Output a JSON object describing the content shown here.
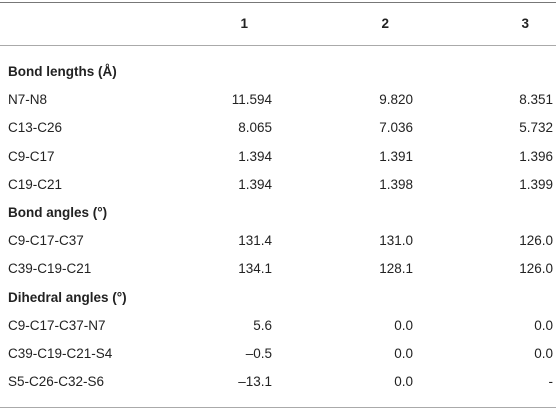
{
  "table": {
    "columns": [
      "1",
      "2",
      "3"
    ],
    "sections": [
      {
        "title": "Bond lengths (Å)",
        "rows": [
          {
            "label": "N7-N8",
            "values": [
              "11.594",
              "9.820",
              "8.351"
            ]
          },
          {
            "label": "C13-C26",
            "values": [
              "8.065",
              "7.036",
              "5.732"
            ]
          },
          {
            "label": "C9-C17",
            "values": [
              "1.394",
              "1.391",
              "1.396"
            ]
          },
          {
            "label": "C19-C21",
            "values": [
              "1.394",
              "1.398",
              "1.399"
            ]
          }
        ]
      },
      {
        "title": "Bond angles (°)",
        "rows": [
          {
            "label": "C9-C17-C37",
            "values": [
              "131.4",
              "131.0",
              "126.0"
            ]
          },
          {
            "label": "C39-C19-C21",
            "values": [
              "134.1",
              "128.1",
              "126.0"
            ]
          }
        ]
      },
      {
        "title": "Dihedral angles (°)",
        "rows": [
          {
            "label": "C9-C17-C37-N7",
            "values": [
              "5.6",
              "0.0",
              "0.0"
            ]
          },
          {
            "label": "C39-C19-C21-S4",
            "values": [
              "–0.5",
              "0.0",
              "0.0"
            ]
          },
          {
            "label": "S5-C26-C32-S6",
            "values": [
              "–13.1",
              "0.0",
              "-"
            ]
          }
        ]
      }
    ]
  }
}
